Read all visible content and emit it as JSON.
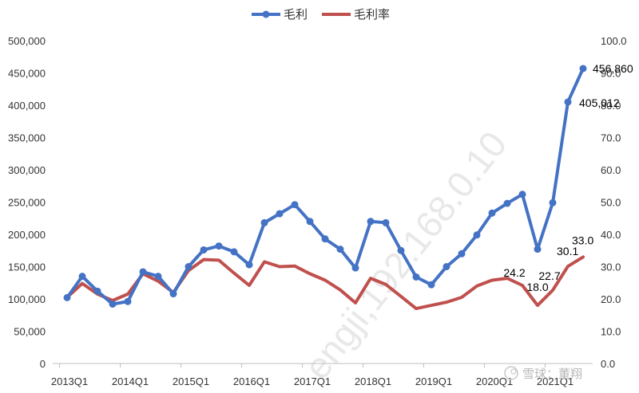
{
  "chart_data": {
    "type": "line",
    "x": [
      "2013Q1",
      "2013Q2",
      "2013Q3",
      "2013Q4",
      "2014Q1",
      "2014Q2",
      "2014Q3",
      "2014Q4",
      "2015Q1",
      "2015Q2",
      "2015Q3",
      "2015Q4",
      "2016Q1",
      "2016Q2",
      "2016Q3",
      "2016Q4",
      "2017Q1",
      "2017Q2",
      "2017Q3",
      "2017Q4",
      "2018Q1",
      "2018Q2",
      "2018Q3",
      "2018Q4",
      "2019Q1",
      "2019Q2",
      "2019Q3",
      "2019Q4",
      "2020Q1",
      "2020Q2",
      "2020Q3",
      "2020Q4",
      "2021Q1",
      "2021Q2",
      "2021Q3"
    ],
    "x_tick_labels": [
      "2013Q1",
      "2014Q1",
      "2015Q1",
      "2016Q1",
      "2017Q1",
      "2018Q1",
      "2019Q1",
      "2020Q1",
      "2021Q1"
    ],
    "series": [
      {
        "name": "毛利",
        "axis": "left",
        "color": "#4472c4",
        "marker": "circle",
        "values": [
          102000,
          135000,
          112000,
          92000,
          96000,
          142000,
          135000,
          108000,
          150000,
          176000,
          182000,
          173000,
          153000,
          218000,
          232000,
          246000,
          220000,
          193000,
          177000,
          148000,
          220000,
          218000,
          175000,
          134000,
          122000,
          150000,
          170000,
          199000,
          233000,
          248000,
          262000,
          177000,
          249000,
          405012,
          456860
        ]
      },
      {
        "name": "毛利率",
        "axis": "right",
        "color": "#c0504d",
        "marker": "none",
        "values": [
          20.5,
          24.8,
          21.5,
          19.5,
          21.5,
          27.8,
          25.5,
          22.0,
          28.8,
          32.2,
          32.0,
          28.0,
          24.2,
          31.5,
          30.0,
          30.2,
          27.8,
          25.8,
          22.8,
          18.8,
          26.4,
          24.5,
          20.8,
          17.0,
          18.0,
          19.0,
          20.5,
          24.0,
          25.8,
          26.4,
          24.2,
          18.0,
          22.7,
          30.1,
          33.0
        ]
      }
    ],
    "data_labels": [
      {
        "series": 0,
        "index": 34,
        "text": "456,860"
      },
      {
        "series": 0,
        "index": 33,
        "text": "405,012"
      },
      {
        "series": 1,
        "index": 34,
        "text": "33.0"
      },
      {
        "series": 1,
        "index": 33,
        "text": "30.1"
      },
      {
        "series": 1,
        "index": 32,
        "text": "22.7"
      },
      {
        "series": 1,
        "index": 30,
        "text": "24.2"
      },
      {
        "series": 1,
        "index": 31,
        "text": "18.0"
      }
    ],
    "y_left": {
      "min": 0,
      "max": 500000,
      "step": 50000,
      "tick_labels": [
        "0",
        "50,000",
        "100,000",
        "150,000",
        "200,000",
        "250,000",
        "300,000",
        "350,000",
        "400,000",
        "450,000",
        "500,000"
      ]
    },
    "y_right": {
      "min": 0,
      "max": 100,
      "step": 10,
      "tick_labels": [
        "0.0",
        "10.0",
        "20.0",
        "30.0",
        "40.0",
        "50.0",
        "60.0",
        "70.0",
        "80.0",
        "90.0",
        "100.0"
      ]
    },
    "legend_position": "top-center",
    "grid": false
  },
  "watermark_text": "engji,192.168.0.10",
  "footer_text": "雪球：董翔"
}
